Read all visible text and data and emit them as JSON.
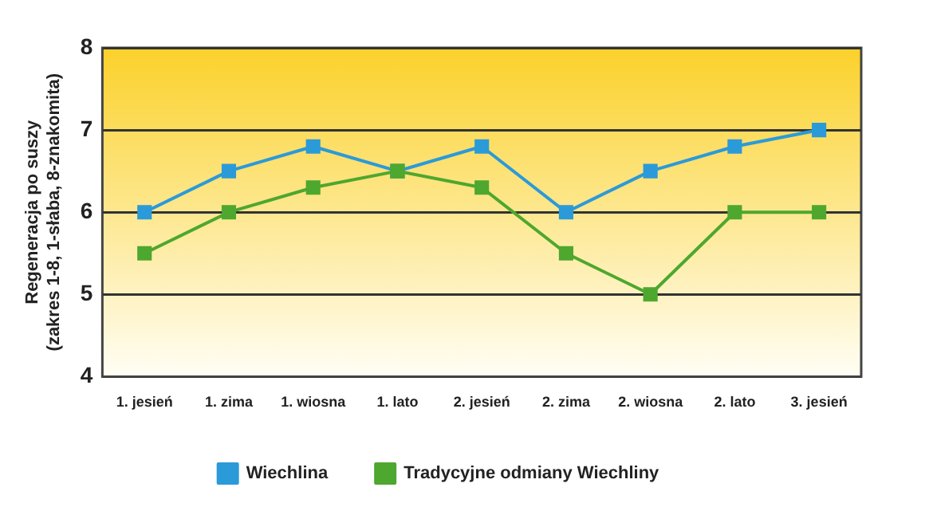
{
  "chart_data": {
    "type": "line",
    "ylabel": "Regeneracja po suszy\n(zakres 1-8, 1-słaba, 8-znakomita)",
    "categories": [
      "1. jesień",
      "1. zima",
      "1. wiosna",
      "1. lato",
      "2. jesień",
      "2. zima",
      "2. wiosna",
      "2. lato",
      "3. jesień"
    ],
    "series": [
      {
        "name": "Wiechlina",
        "color": "#2b9ad8",
        "values": [
          6,
          6.5,
          6.8,
          6.5,
          6.8,
          6,
          6.5,
          6.8,
          7
        ]
      },
      {
        "name": "Tradycyjne odmiany Wiechliny",
        "color": "#4ea72e",
        "values": [
          5.5,
          6,
          6.3,
          6.5,
          6.3,
          5.5,
          5,
          6,
          6
        ]
      }
    ],
    "ylim": [
      4,
      8
    ],
    "yticks": [
      4,
      5,
      6,
      7,
      8
    ],
    "grid": "y",
    "legend": "bottom",
    "marker": "square",
    "line_style": "solid"
  }
}
